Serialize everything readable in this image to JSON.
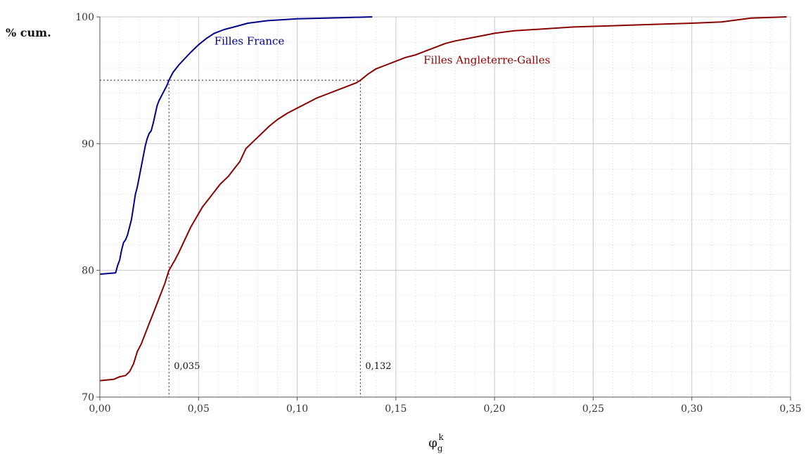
{
  "chart_data": {
    "type": "line",
    "ylabel": "% cum.",
    "xlabel": {
      "main": "φ",
      "sub": "g",
      "sup": "k"
    },
    "xlim": [
      0,
      0.35
    ],
    "ylim": [
      70,
      100
    ],
    "x_ticks": [
      0,
      0.05,
      0.1,
      0.15,
      0.2,
      0.25,
      0.3,
      0.35
    ],
    "x_tick_labels": [
      "0,00",
      "0,05",
      "0,10",
      "0,15",
      "0,20",
      "0,25",
      "0,30",
      "0,35"
    ],
    "y_ticks": [
      70,
      80,
      90,
      100
    ],
    "y_tick_labels": [
      "70",
      "80",
      "90",
      "100"
    ],
    "grid": true,
    "series": [
      {
        "name": "Filles France",
        "color": "#00008b",
        "points": [
          [
            0.0,
            79.7
          ],
          [
            0.008,
            79.8
          ],
          [
            0.009,
            80.4
          ],
          [
            0.01,
            80.8
          ],
          [
            0.011,
            81.6
          ],
          [
            0.012,
            82.2
          ],
          [
            0.013,
            82.4
          ],
          [
            0.014,
            82.8
          ],
          [
            0.015,
            83.4
          ],
          [
            0.016,
            84.0
          ],
          [
            0.017,
            85.0
          ],
          [
            0.018,
            86.0
          ],
          [
            0.019,
            86.6
          ],
          [
            0.02,
            87.4
          ],
          [
            0.021,
            88.2
          ],
          [
            0.022,
            89.0
          ],
          [
            0.023,
            89.8
          ],
          [
            0.024,
            90.4
          ],
          [
            0.025,
            90.8
          ],
          [
            0.026,
            91.0
          ],
          [
            0.027,
            91.6
          ],
          [
            0.028,
            92.3
          ],
          [
            0.029,
            93.0
          ],
          [
            0.03,
            93.4
          ],
          [
            0.032,
            94.0
          ],
          [
            0.034,
            94.6
          ],
          [
            0.035,
            95.0
          ],
          [
            0.037,
            95.6
          ],
          [
            0.04,
            96.2
          ],
          [
            0.043,
            96.7
          ],
          [
            0.046,
            97.2
          ],
          [
            0.05,
            97.8
          ],
          [
            0.054,
            98.3
          ],
          [
            0.058,
            98.7
          ],
          [
            0.063,
            99.0
          ],
          [
            0.068,
            99.2
          ],
          [
            0.075,
            99.5
          ],
          [
            0.085,
            99.7
          ],
          [
            0.1,
            99.85
          ],
          [
            0.12,
            99.92
          ],
          [
            0.138,
            100.0
          ]
        ],
        "label_at": [
          0.058,
          97.8
        ]
      },
      {
        "name": "Filles Angleterre-Galles",
        "color": "#8b0000",
        "points": [
          [
            0.0,
            71.3
          ],
          [
            0.007,
            71.4
          ],
          [
            0.01,
            71.6
          ],
          [
            0.013,
            71.7
          ],
          [
            0.015,
            72.0
          ],
          [
            0.017,
            72.6
          ],
          [
            0.019,
            73.6
          ],
          [
            0.021,
            74.2
          ],
          [
            0.023,
            75.0
          ],
          [
            0.025,
            75.8
          ],
          [
            0.027,
            76.6
          ],
          [
            0.029,
            77.4
          ],
          [
            0.031,
            78.2
          ],
          [
            0.033,
            79.0
          ],
          [
            0.035,
            80.0
          ],
          [
            0.038,
            80.8
          ],
          [
            0.04,
            81.4
          ],
          [
            0.043,
            82.4
          ],
          [
            0.046,
            83.4
          ],
          [
            0.049,
            84.2
          ],
          [
            0.052,
            85.0
          ],
          [
            0.055,
            85.6
          ],
          [
            0.058,
            86.2
          ],
          [
            0.061,
            86.8
          ],
          [
            0.065,
            87.4
          ],
          [
            0.068,
            88.0
          ],
          [
            0.071,
            88.6
          ],
          [
            0.074,
            89.6
          ],
          [
            0.078,
            90.2
          ],
          [
            0.082,
            90.8
          ],
          [
            0.086,
            91.4
          ],
          [
            0.09,
            91.9
          ],
          [
            0.095,
            92.4
          ],
          [
            0.1,
            92.8
          ],
          [
            0.105,
            93.2
          ],
          [
            0.11,
            93.6
          ],
          [
            0.115,
            93.9
          ],
          [
            0.12,
            94.2
          ],
          [
            0.125,
            94.5
          ],
          [
            0.13,
            94.8
          ],
          [
            0.132,
            95.0
          ],
          [
            0.136,
            95.5
          ],
          [
            0.14,
            95.9
          ],
          [
            0.145,
            96.2
          ],
          [
            0.15,
            96.5
          ],
          [
            0.155,
            96.8
          ],
          [
            0.16,
            97.0
          ],
          [
            0.165,
            97.3
          ],
          [
            0.17,
            97.6
          ],
          [
            0.175,
            97.9
          ],
          [
            0.18,
            98.1
          ],
          [
            0.19,
            98.4
          ],
          [
            0.2,
            98.7
          ],
          [
            0.21,
            98.9
          ],
          [
            0.22,
            99.0
          ],
          [
            0.24,
            99.2
          ],
          [
            0.26,
            99.3
          ],
          [
            0.28,
            99.4
          ],
          [
            0.3,
            99.5
          ],
          [
            0.315,
            99.6
          ],
          [
            0.33,
            99.9
          ],
          [
            0.348,
            100.0
          ]
        ],
        "label_at": [
          0.164,
          96.3
        ]
      }
    ],
    "reference_level": 95,
    "annotations": [
      {
        "x": 0.035,
        "label": "0,035"
      },
      {
        "x": 0.132,
        "label": "0,132"
      }
    ]
  }
}
